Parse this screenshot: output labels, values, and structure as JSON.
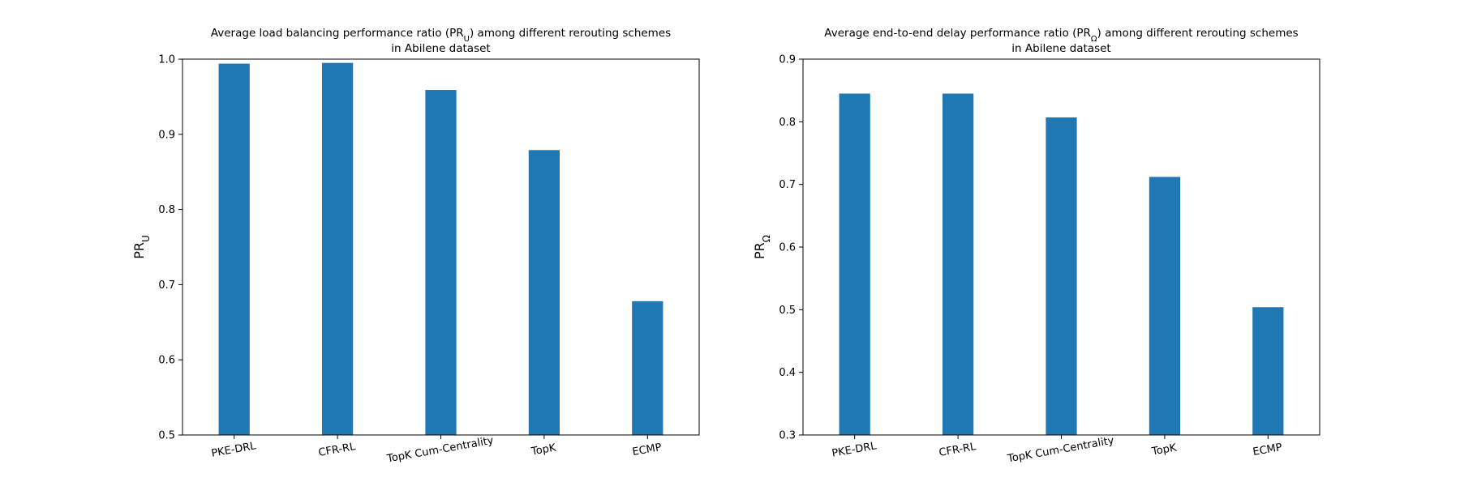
{
  "figure": {
    "charts": [
      {
        "title_lines": [
          {
            "pre": "Average load balancing performance ratio (PR",
            "sub": "U",
            "post": ") among different rerouting schemes"
          },
          {
            "pre": "in Abilene dataset",
            "sub": "",
            "post": ""
          }
        ]
      },
      {
        "title_lines": [
          {
            "pre": "Average end-to-end delay performance ratio (PR",
            "sub": "Ω",
            "post": ") among different rerouting schemes"
          },
          {
            "pre": "in Abilene dataset",
            "sub": "",
            "post": ""
          }
        ]
      }
    ]
  },
  "chart_data": [
    {
      "type": "bar",
      "categories": [
        "PKE-DRL",
        "CFR-RL",
        "TopK Cum-Centrality",
        "TopK",
        "ECMP"
      ],
      "series": [
        {
          "values": [
            0.994,
            0.995,
            0.959,
            0.879,
            0.678
          ]
        }
      ],
      "ylabel": {
        "main": "PR",
        "sub": "U"
      },
      "ylim": [
        0.5,
        1.0
      ],
      "yticks": [
        "0.5",
        "0.6",
        "0.7",
        "0.8",
        "0.9",
        "1.0"
      ],
      "color": "#1f77b4",
      "grid": false,
      "xtick_rotation_deg": -10
    },
    {
      "type": "bar",
      "categories": [
        "PKE-DRL",
        "CFR-RL",
        "TopK Cum-Centrality",
        "TopK",
        "ECMP"
      ],
      "series": [
        {
          "values": [
            0.845,
            0.845,
            0.807,
            0.712,
            0.504
          ]
        }
      ],
      "ylabel": {
        "main": "PR",
        "sub": "Ω"
      },
      "ylim": [
        0.3,
        0.9
      ],
      "yticks": [
        "0.3",
        "0.4",
        "0.5",
        "0.6",
        "0.7",
        "0.8",
        "0.9"
      ],
      "color": "#1f77b4",
      "grid": false,
      "xtick_rotation_deg": -10
    }
  ]
}
